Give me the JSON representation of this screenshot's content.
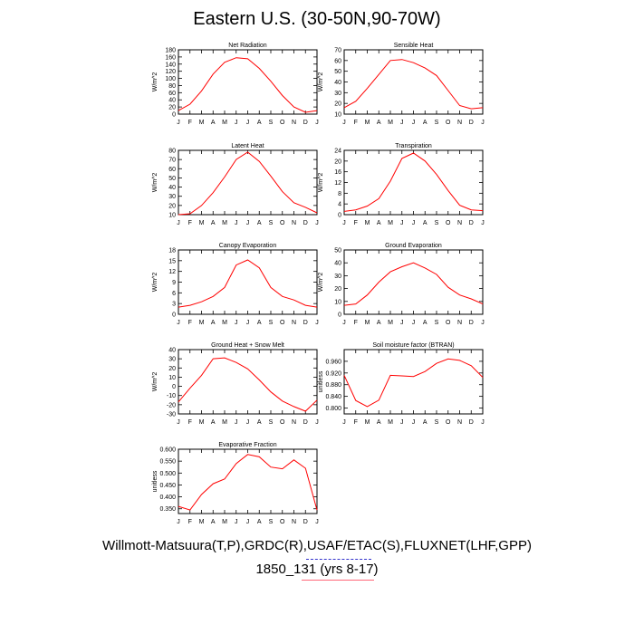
{
  "title": "Eastern U.S. (30-50N,90-70W)",
  "caption": {
    "line1": "Willmott-Matsuura(T,P),GRDC(R),USAF/ETAC(S),FLUXNET(LHF,GPP)",
    "line2": "1850_131 (yrs 8-17)"
  },
  "months": [
    "J",
    "F",
    "M",
    "A",
    "M",
    "J",
    "J",
    "A",
    "S",
    "O",
    "N",
    "D",
    "J"
  ],
  "line_color": "#ff0000",
  "chart_data": [
    {
      "type": "line",
      "title": "Net Radiation",
      "ylabel": "W/m^2",
      "ylim": [
        0,
        180
      ],
      "yticks": [
        0,
        20,
        40,
        60,
        80,
        100,
        120,
        140,
        160,
        180
      ],
      "values": [
        10,
        28,
        65,
        112,
        145,
        158,
        155,
        128,
        92,
        52,
        20,
        5,
        10
      ]
    },
    {
      "type": "line",
      "title": "Sensible Heat",
      "ylabel": "W/m^2",
      "ylim": [
        10,
        70
      ],
      "yticks": [
        10,
        20,
        30,
        40,
        50,
        60,
        70
      ],
      "values": [
        16,
        22,
        34,
        47,
        60,
        61,
        58,
        53,
        46,
        32,
        18,
        15,
        16
      ]
    },
    {
      "type": "line",
      "title": "Latent Heat",
      "ylabel": "W/m^2",
      "ylim": [
        10,
        80
      ],
      "yticks": [
        10,
        20,
        30,
        40,
        50,
        60,
        70,
        80
      ],
      "values": [
        10,
        11,
        20,
        34,
        51,
        70,
        78,
        68,
        52,
        35,
        23,
        18,
        12
      ]
    },
    {
      "type": "line",
      "title": "Transpiration",
      "ylabel": "W/m^2",
      "ylim": [
        0,
        24
      ],
      "yticks": [
        0,
        4,
        8,
        12,
        16,
        20,
        24
      ],
      "values": [
        1.2,
        1.8,
        3.2,
        6.0,
        12.5,
        21,
        23,
        20,
        15,
        9,
        3.5,
        1.8,
        1.5
      ]
    },
    {
      "type": "line",
      "title": "Canopy Evaporation",
      "ylabel": "W/m^2",
      "ylim": [
        0,
        18
      ],
      "yticks": [
        0,
        3,
        6,
        9,
        12,
        15,
        18
      ],
      "values": [
        2,
        2.5,
        3.5,
        5,
        7.5,
        13.8,
        15.2,
        13,
        7.5,
        5,
        4,
        2.5,
        2
      ]
    },
    {
      "type": "line",
      "title": "Ground Evaporation",
      "ylabel": "W/m^2",
      "ylim": [
        0,
        50
      ],
      "yticks": [
        0,
        10,
        20,
        30,
        40,
        50
      ],
      "values": [
        7,
        8,
        15,
        25,
        33,
        37,
        40,
        36,
        31,
        21,
        15,
        12,
        8
      ]
    },
    {
      "type": "line",
      "title": "Ground Heat + Snow Melt",
      "ylabel": "W/m^2",
      "ylim": [
        -30,
        40
      ],
      "yticks": [
        -30,
        -20,
        -10,
        0,
        10,
        20,
        30,
        40
      ],
      "values": [
        -17,
        -2,
        12,
        30,
        31,
        26,
        19,
        7,
        -6,
        -16,
        -22,
        -27,
        -15
      ]
    },
    {
      "type": "line",
      "title": "Soil moisture factor (BTRAN)",
      "ylabel": "unitless",
      "ylim": [
        0.78,
        1.0
      ],
      "yticks": [
        0.8,
        0.84,
        0.88,
        0.92,
        0.96
      ],
      "ytick_labels": [
        "0.800",
        "0.840",
        "0.880",
        "0.920",
        "0.960"
      ],
      "values": [
        0.912,
        0.826,
        0.805,
        0.827,
        0.912,
        0.91,
        0.908,
        0.925,
        0.953,
        0.968,
        0.963,
        0.945,
        0.905
      ]
    },
    {
      "type": "line",
      "title": "Evaporative Fraction",
      "ylabel": "unitless",
      "ylim": [
        0.33,
        0.6
      ],
      "yticks": [
        0.35,
        0.4,
        0.45,
        0.5,
        0.55,
        0.6
      ],
      "ytick_labels": [
        "0.350",
        "0.400",
        "0.450",
        "0.500",
        "0.550",
        "0.600"
      ],
      "values": [
        0.36,
        0.345,
        0.41,
        0.455,
        0.475,
        0.54,
        0.578,
        0.568,
        0.525,
        0.518,
        0.555,
        0.52,
        0.345
      ]
    }
  ]
}
